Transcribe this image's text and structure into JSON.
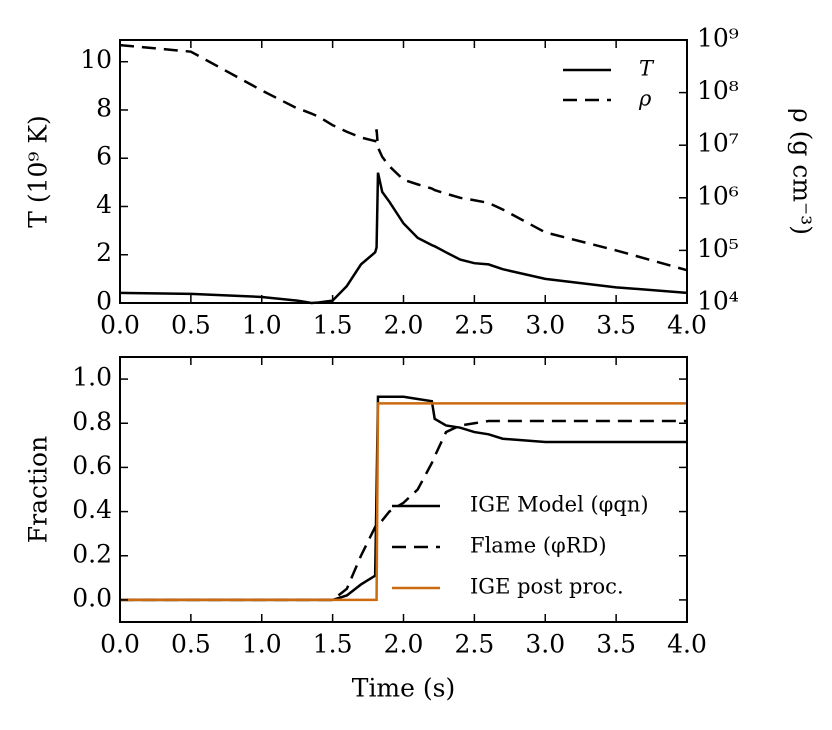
{
  "chart_data": [
    {
      "type": "line",
      "ylabel": "T (10⁹ K)",
      "y2label": "ρ (g cm⁻³)",
      "x": [
        0,
        0.5,
        1.0,
        1.25,
        1.3,
        1.35,
        1.4,
        1.5,
        1.6,
        1.7,
        1.8,
        1.81,
        1.82,
        1.85,
        1.9,
        2.0,
        2.1,
        2.2,
        2.22,
        2.3,
        2.4,
        2.5,
        2.6,
        2.7,
        3.0,
        3.5,
        4.0
      ],
      "series": [
        {
          "name": "T",
          "color": "#000000",
          "style": "solid",
          "values": [
            0.42,
            0.38,
            0.25,
            0.1,
            0.05,
            0,
            0.02,
            0.1,
            0.7,
            1.6,
            2.1,
            2.3,
            5.4,
            4.6,
            4.2,
            3.3,
            2.7,
            2.4,
            2.35,
            2.1,
            1.8,
            1.65,
            1.6,
            1.4,
            1.0,
            0.65,
            0.42
          ]
        },
        {
          "name": "ρ",
          "color": "#000000",
          "style": "dashed",
          "axis": "y2",
          "values": [
            800000000,
            600000000,
            110000000,
            50000000,
            45000000,
            40000000,
            35000000,
            24000000,
            18000000,
            14000000,
            12000000,
            20000000,
            9000000,
            6000000,
            4000000,
            2200000,
            1800000,
            1500000,
            1400000,
            1200000,
            1000000,
            900000,
            800000,
            600000,
            220000,
            100000,
            42000
          ]
        }
      ],
      "xlim": [
        0,
        4
      ],
      "xticks": [
        {
          "value": 0,
          "label": "0.0"
        },
        {
          "value": 0.5,
          "label": "0.5"
        },
        {
          "value": 1,
          "label": "1.0"
        },
        {
          "value": 1.5,
          "label": "1.5"
        },
        {
          "value": 2,
          "label": "2.0"
        },
        {
          "value": 2.5,
          "label": "2.5"
        },
        {
          "value": 3,
          "label": "3.0"
        },
        {
          "value": 3.5,
          "label": "3.5"
        },
        {
          "value": 4,
          "label": "4.0"
        }
      ],
      "ylim": [
        0,
        10.9
      ],
      "yticks": [
        0,
        2,
        4,
        6,
        8,
        10
      ],
      "y2lim": [
        10000,
        1000000000
      ],
      "y2scale": "log",
      "y2ticks": [
        {
          "value": 10000,
          "label": "10⁴"
        },
        {
          "value": 100000,
          "label": "10⁵"
        },
        {
          "value": 1000000,
          "label": "10⁶"
        },
        {
          "value": 10000000,
          "label": "10⁷"
        },
        {
          "value": 100000000,
          "label": "10⁸"
        },
        {
          "value": 1000000000,
          "label": "10⁹"
        }
      ],
      "legend": "upper right"
    },
    {
      "type": "line",
      "xlabel": "Time (s)",
      "ylabel": "Fraction",
      "x": [
        0,
        0.5,
        1.0,
        1.25,
        1.3,
        1.35,
        1.4,
        1.5,
        1.6,
        1.7,
        1.8,
        1.81,
        1.82,
        1.85,
        1.9,
        2.0,
        2.1,
        2.2,
        2.22,
        2.3,
        2.4,
        2.5,
        2.6,
        2.7,
        3.0,
        3.5,
        4.0
      ],
      "series": [
        {
          "name": "IGE Model (φqn)",
          "color": "#000000",
          "style": "solid",
          "values": [
            0,
            0,
            0,
            0,
            0,
            0,
            0,
            0,
            0.02,
            0.07,
            0.11,
            0.5,
            0.92,
            0.92,
            0.92,
            0.92,
            0.91,
            0.9,
            0.82,
            0.79,
            0.78,
            0.76,
            0.75,
            0.73,
            0.715,
            0.715,
            0.715
          ]
        },
        {
          "name": "Flame (φRD)",
          "color": "#000000",
          "style": "dashed",
          "values": [
            0,
            0,
            0,
            0,
            0,
            0,
            0,
            0,
            0.05,
            0.2,
            0.33,
            0.34,
            0.34,
            0.36,
            0.4,
            0.44,
            0.5,
            0.62,
            0.65,
            0.76,
            0.79,
            0.8,
            0.81,
            0.81,
            0.81,
            0.81,
            0.81
          ]
        },
        {
          "name": "IGE post proc.",
          "color": "#cc6a10",
          "style": "solid",
          "values": [
            0,
            0,
            0,
            0,
            0,
            0,
            0,
            0,
            0,
            0,
            0,
            0,
            0.89,
            0.89,
            0.89,
            0.89,
            0.89,
            0.89,
            0.89,
            0.89,
            0.89,
            0.89,
            0.89,
            0.89,
            0.89,
            0.89,
            0.89
          ]
        }
      ],
      "xlim": [
        0,
        4
      ],
      "xticks": [
        {
          "value": 0,
          "label": "0.0"
        },
        {
          "value": 0.5,
          "label": "0.5"
        },
        {
          "value": 1,
          "label": "1.0"
        },
        {
          "value": 1.5,
          "label": "1.5"
        },
        {
          "value": 2,
          "label": "2.0"
        },
        {
          "value": 2.5,
          "label": "2.5"
        },
        {
          "value": 3,
          "label": "3.0"
        },
        {
          "value": 3.5,
          "label": "3.5"
        },
        {
          "value": 4,
          "label": "4.0"
        }
      ],
      "ylim": [
        -0.1,
        1.1
      ],
      "yticks": [
        {
          "value": 0,
          "label": "0.0"
        },
        {
          "value": 0.2,
          "label": "0.2"
        },
        {
          "value": 0.4,
          "label": "0.4"
        },
        {
          "value": 0.6,
          "label": "0.6"
        },
        {
          "value": 0.8,
          "label": "0.8"
        },
        {
          "value": 1,
          "label": "1.0"
        }
      ],
      "legend": "lower right"
    }
  ]
}
